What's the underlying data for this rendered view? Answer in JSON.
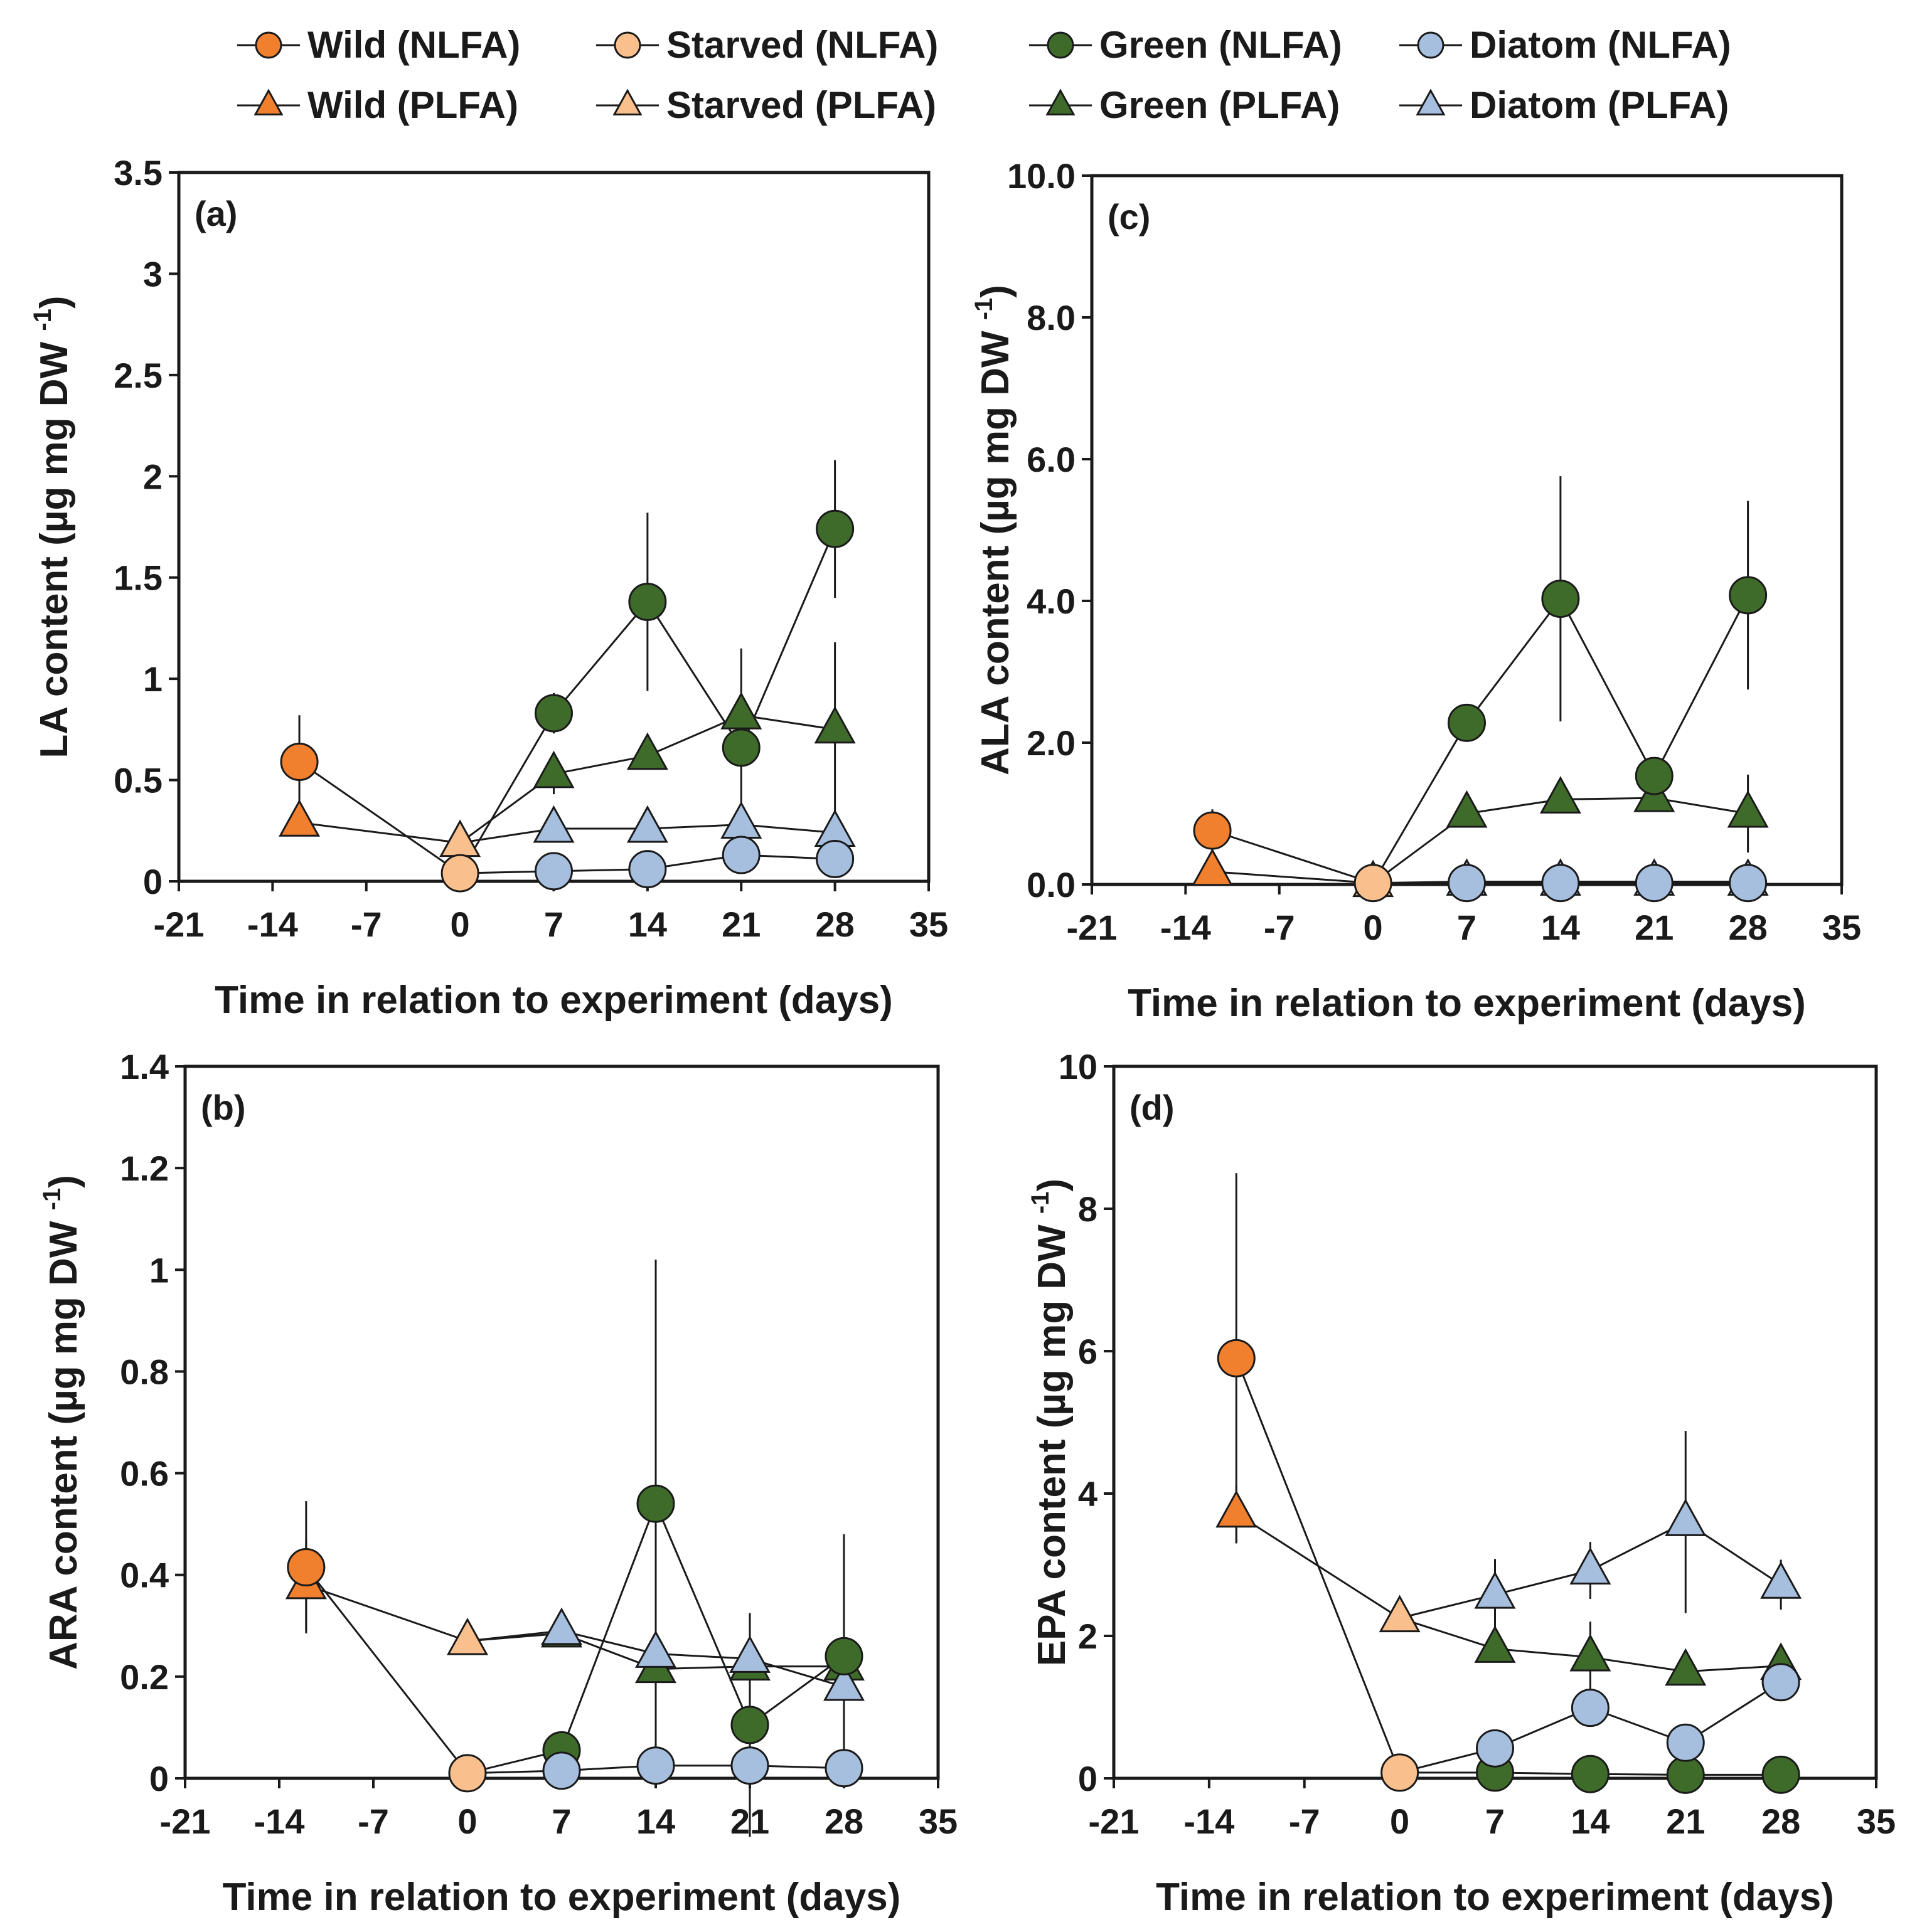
{
  "legend": [
    {
      "label": "Wild (NLFA)",
      "marker": "circle",
      "color": "#F07F2E"
    },
    {
      "label": "Starved (NLFA)",
      "marker": "circle",
      "color": "#F9C08E"
    },
    {
      "label": "Green (NLFA)",
      "marker": "circle",
      "color": "#3F6B2A"
    },
    {
      "label": "Diatom (NLFA)",
      "marker": "circle",
      "color": "#A7BFDF"
    },
    {
      "label": "Wild (PLFA)",
      "marker": "triangle",
      "color": "#F07F2E"
    },
    {
      "label": "Starved (PLFA)",
      "marker": "triangle",
      "color": "#F9C08E"
    },
    {
      "label": "Green (PLFA)",
      "marker": "triangle",
      "color": "#3F6B2A"
    },
    {
      "label": "Diatom (PLFA)",
      "marker": "triangle",
      "color": "#A7BFDF"
    }
  ],
  "colors": {
    "wild": "#F07F2E",
    "starved": "#F9C08E",
    "green": "#3F6B2A",
    "diatom": "#A7BFDF",
    "axis": "#1a1a1a"
  },
  "chart_data": [
    {
      "panel": "(a)",
      "type": "scatter",
      "xlabel": "Time in relation to experiment (days)",
      "ylabel": "LA content (µg mg DW",
      "ylabel_sup": "-1",
      "ylabel_close": ")",
      "xlim": [
        -21,
        35
      ],
      "ylim": [
        0,
        3.5
      ],
      "xticks": [
        "-21",
        "-14",
        "-7",
        "0",
        "7",
        "14",
        "21",
        "28",
        "35"
      ],
      "yticks": [
        "0",
        "0.5",
        "1",
        "1.5",
        "2",
        "2.5",
        "3",
        "3.5"
      ],
      "series": [
        {
          "name": "Wild (NLFA)",
          "marker": "circle",
          "color": "wild",
          "x": [
            -12
          ],
          "y": [
            0.59
          ],
          "err": [
            0.23
          ]
        },
        {
          "name": "Wild (PLFA)",
          "marker": "triangle",
          "color": "wild",
          "x": [
            -12
          ],
          "y": [
            0.29
          ],
          "err": [
            0
          ]
        },
        {
          "name": "Starved (NLFA)",
          "marker": "circle",
          "color": "starved",
          "x": [
            0
          ],
          "y": [
            0.04
          ],
          "err": [
            0
          ]
        },
        {
          "name": "Starved (PLFA)",
          "marker": "triangle",
          "color": "starved",
          "x": [
            0
          ],
          "y": [
            0.19
          ],
          "err": [
            0
          ]
        },
        {
          "name": "Green (NLFA)",
          "marker": "circle",
          "color": "green",
          "x": [
            7,
            14,
            21,
            28
          ],
          "y": [
            0.83,
            1.38,
            0.66,
            1.74
          ],
          "err": [
            0.1,
            0.44,
            0.49,
            0.34
          ]
        },
        {
          "name": "Green (PLFA)",
          "marker": "triangle",
          "color": "green",
          "x": [
            7,
            14,
            21,
            28
          ],
          "y": [
            0.53,
            0.62,
            0.82,
            0.75
          ],
          "err": [
            0.1,
            0,
            0,
            0.43
          ]
        },
        {
          "name": "Diatom (NLFA)",
          "marker": "circle",
          "color": "diatom",
          "x": [
            7,
            14,
            21,
            28
          ],
          "y": [
            0.05,
            0.06,
            0.13,
            0.11
          ],
          "err": [
            0,
            0,
            0,
            0
          ]
        },
        {
          "name": "Diatom (PLFA)",
          "marker": "triangle",
          "color": "diatom",
          "x": [
            7,
            14,
            21,
            28
          ],
          "y": [
            0.26,
            0.26,
            0.28,
            0.24
          ],
          "err": [
            0,
            0,
            0,
            0
          ]
        }
      ],
      "lines": [
        {
          "x": [
            -12,
            0,
            7,
            14,
            21,
            28
          ],
          "y": [
            0.59,
            0.04,
            0.83,
            1.38,
            0.66,
            1.74
          ]
        },
        {
          "x": [
            -12,
            0,
            7,
            14,
            21,
            28
          ],
          "y": [
            0.29,
            0.19,
            0.53,
            0.62,
            0.82,
            0.75
          ]
        },
        {
          "x": [
            0,
            7,
            14,
            21,
            28
          ],
          "y": [
            0.04,
            0.05,
            0.06,
            0.13,
            0.11
          ]
        },
        {
          "x": [
            0,
            7,
            14,
            21,
            28
          ],
          "y": [
            0.19,
            0.26,
            0.26,
            0.28,
            0.24
          ]
        }
      ]
    },
    {
      "panel": "(b)",
      "type": "scatter",
      "xlabel": "Time in relation to experiment (days)",
      "ylabel": "ARA content (µg mg DW",
      "ylabel_sup": "-1",
      "ylabel_close": ")",
      "xlim": [
        -21,
        35
      ],
      "ylim": [
        0,
        1.4
      ],
      "xticks": [
        "-21",
        "-14",
        "-7",
        "0",
        "7",
        "14",
        "21",
        "28",
        "35"
      ],
      "yticks": [
        "0",
        "0.2",
        "0.4",
        "0.6",
        "0.8",
        "1",
        "1.2",
        "1.4"
      ],
      "series": [
        {
          "name": "Wild (NLFA)",
          "marker": "circle",
          "color": "wild",
          "x": [
            -12
          ],
          "y": [
            0.415
          ],
          "err": [
            0.13
          ]
        },
        {
          "name": "Wild (PLFA)",
          "marker": "triangle",
          "color": "wild",
          "x": [
            -12
          ],
          "y": [
            0.38
          ],
          "err": [
            0.09
          ]
        },
        {
          "name": "Starved (NLFA)",
          "marker": "circle",
          "color": "starved",
          "x": [
            0
          ],
          "y": [
            0.01
          ],
          "err": [
            0
          ]
        },
        {
          "name": "Starved (PLFA)",
          "marker": "triangle",
          "color": "starved",
          "x": [
            0
          ],
          "y": [
            0.27
          ],
          "err": [
            0
          ]
        },
        {
          "name": "Green (NLFA)",
          "marker": "circle",
          "color": "green",
          "x": [
            7,
            14,
            21,
            28
          ],
          "y": [
            0.055,
            0.54,
            0.105,
            0.24
          ],
          "err": [
            0,
            0.48,
            0.22,
            0.24
          ]
        },
        {
          "name": "Green (PLFA)",
          "marker": "triangle",
          "color": "green",
          "x": [
            7,
            14,
            21,
            28
          ],
          "y": [
            0.285,
            0.215,
            0.22,
            0.22
          ],
          "err": [
            0,
            0,
            0,
            0
          ]
        },
        {
          "name": "Diatom (NLFA)",
          "marker": "circle",
          "color": "diatom",
          "x": [
            7,
            14,
            21,
            28
          ],
          "y": [
            0.015,
            0.025,
            0.025,
            0.02
          ],
          "err": [
            0,
            0,
            0,
            0
          ]
        },
        {
          "name": "Diatom (PLFA)",
          "marker": "triangle",
          "color": "diatom",
          "x": [
            7,
            14,
            21,
            28
          ],
          "y": [
            0.29,
            0.245,
            0.235,
            0.18
          ],
          "err": [
            0,
            0,
            0,
            0
          ]
        }
      ],
      "lines": [
        {
          "x": [
            -12,
            0,
            7,
            14,
            21,
            28
          ],
          "y": [
            0.415,
            0.01,
            0.055,
            0.54,
            0.105,
            0.24
          ]
        },
        {
          "x": [
            -12,
            0,
            7,
            14,
            21,
            28
          ],
          "y": [
            0.38,
            0.27,
            0.285,
            0.215,
            0.22,
            0.22
          ]
        },
        {
          "x": [
            0,
            7,
            14,
            21,
            28
          ],
          "y": [
            0.01,
            0.015,
            0.025,
            0.025,
            0.02
          ]
        },
        {
          "x": [
            0,
            7,
            14,
            21,
            28
          ],
          "y": [
            0.27,
            0.29,
            0.245,
            0.235,
            0.18
          ]
        }
      ]
    },
    {
      "panel": "(c)",
      "type": "scatter",
      "xlabel": "Time in relation to experiment (days)",
      "ylabel": "ALA content (µg mg DW",
      "ylabel_sup": "-1",
      "ylabel_close": ")",
      "xlim": [
        -21,
        35
      ],
      "ylim": [
        0,
        10
      ],
      "xticks": [
        "-21",
        "-14",
        "-7",
        "0",
        "7",
        "14",
        "21",
        "28",
        "35"
      ],
      "yticks": [
        "0.0",
        "2.0",
        "4.0",
        "6.0",
        "8.0",
        "10.0"
      ],
      "series": [
        {
          "name": "Wild (NLFA)",
          "marker": "circle",
          "color": "wild",
          "x": [
            -12
          ],
          "y": [
            0.76
          ],
          "err": [
            0.3
          ]
        },
        {
          "name": "Wild (PLFA)",
          "marker": "triangle",
          "color": "wild",
          "x": [
            -12
          ],
          "y": [
            0.18
          ],
          "err": [
            0
          ]
        },
        {
          "name": "Starved (NLFA)",
          "marker": "circle",
          "color": "starved",
          "x": [
            0
          ],
          "y": [
            0.02
          ],
          "err": [
            0
          ]
        },
        {
          "name": "Starved (PLFA)",
          "marker": "triangle",
          "color": "starved",
          "x": [
            0
          ],
          "y": [
            0.02
          ],
          "err": [
            0
          ]
        },
        {
          "name": "Green (NLFA)",
          "marker": "circle",
          "color": "green",
          "x": [
            7,
            14,
            21,
            28
          ],
          "y": [
            2.28,
            4.03,
            1.53,
            4.08
          ],
          "err": [
            0,
            1.73,
            0,
            1.33
          ]
        },
        {
          "name": "Green (PLFA)",
          "marker": "triangle",
          "color": "green",
          "x": [
            7,
            14,
            21,
            28
          ],
          "y": [
            1.0,
            1.2,
            1.22,
            1.0
          ],
          "err": [
            0,
            0,
            0,
            0.55
          ]
        },
        {
          "name": "Diatom (NLFA)",
          "marker": "circle",
          "color": "diatom",
          "x": [
            7,
            14,
            21,
            28
          ],
          "y": [
            0.02,
            0.02,
            0.02,
            0.02
          ],
          "err": [
            0,
            0,
            0,
            0
          ]
        },
        {
          "name": "Diatom (PLFA)",
          "marker": "triangle",
          "color": "diatom",
          "x": [
            7,
            14,
            21,
            28
          ],
          "y": [
            0.04,
            0.04,
            0.04,
            0.04
          ],
          "err": [
            0,
            0,
            0,
            0
          ]
        }
      ],
      "lines": [
        {
          "x": [
            -12,
            0,
            7,
            14,
            21,
            28
          ],
          "y": [
            0.76,
            0.02,
            2.28,
            4.03,
            1.53,
            4.08
          ]
        },
        {
          "x": [
            -12,
            0,
            7,
            14,
            21,
            28
          ],
          "y": [
            0.18,
            0.02,
            1.0,
            1.2,
            1.22,
            1.0
          ]
        },
        {
          "x": [
            0,
            7,
            14,
            21,
            28
          ],
          "y": [
            0.02,
            0.02,
            0.02,
            0.02,
            0.02
          ]
        },
        {
          "x": [
            0,
            7,
            14,
            21,
            28
          ],
          "y": [
            0.02,
            0.04,
            0.04,
            0.04,
            0.04
          ]
        }
      ]
    },
    {
      "panel": "(d)",
      "type": "scatter",
      "xlabel": "Time in relation to experiment (days)",
      "ylabel": "EPA content (µg mg DW",
      "ylabel_sup": "-1",
      "ylabel_close": ")",
      "xlim": [
        -21,
        35
      ],
      "ylim": [
        0,
        10
      ],
      "xticks": [
        "-21",
        "-14",
        "-7",
        "0",
        "7",
        "14",
        "21",
        "28",
        "35"
      ],
      "yticks": [
        "0",
        "2",
        "4",
        "6",
        "8",
        "10"
      ],
      "series": [
        {
          "name": "Wild (NLFA)",
          "marker": "circle",
          "color": "wild",
          "x": [
            -12
          ],
          "y": [
            5.9
          ],
          "err": [
            2.6
          ]
        },
        {
          "name": "Wild (PLFA)",
          "marker": "triangle",
          "color": "wild",
          "x": [
            -12
          ],
          "y": [
            3.72
          ],
          "err": [
            0.4
          ]
        },
        {
          "name": "Starved (NLFA)",
          "marker": "circle",
          "color": "starved",
          "x": [
            0
          ],
          "y": [
            0.08
          ],
          "err": [
            0
          ]
        },
        {
          "name": "Starved (PLFA)",
          "marker": "triangle",
          "color": "starved",
          "x": [
            0
          ],
          "y": [
            2.25
          ],
          "err": [
            0
          ]
        },
        {
          "name": "Green (NLFA)",
          "marker": "circle",
          "color": "green",
          "x": [
            7,
            14,
            21,
            28
          ],
          "y": [
            0.08,
            0.06,
            0.05,
            0.05
          ],
          "err": [
            0,
            0,
            0,
            0
          ]
        },
        {
          "name": "Green (PLFA)",
          "marker": "triangle",
          "color": "green",
          "x": [
            7,
            14,
            21,
            28
          ],
          "y": [
            1.82,
            1.7,
            1.5,
            1.58
          ],
          "err": [
            0,
            0.5,
            0,
            0
          ]
        },
        {
          "name": "Diatom (NLFA)",
          "marker": "circle",
          "color": "diatom",
          "x": [
            7,
            14,
            21,
            28
          ],
          "y": [
            0.42,
            0.99,
            0.5,
            1.35
          ],
          "err": [
            0,
            0,
            0,
            0
          ]
        },
        {
          "name": "Diatom (PLFA)",
          "marker": "triangle",
          "color": "diatom",
          "x": [
            7,
            14,
            21,
            28
          ],
          "y": [
            2.58,
            2.92,
            3.6,
            2.72
          ],
          "err": [
            0.5,
            0.4,
            1.28,
            0.35
          ]
        }
      ],
      "lines": [
        {
          "x": [
            -12,
            0,
            7,
            14,
            21,
            28
          ],
          "y": [
            5.9,
            0.08,
            0.08,
            0.06,
            0.05,
            0.05
          ]
        },
        {
          "x": [
            -12,
            0,
            7,
            14,
            21,
            28
          ],
          "y": [
            3.72,
            2.25,
            1.82,
            1.7,
            1.5,
            1.58
          ]
        },
        {
          "x": [
            0,
            7,
            14,
            21,
            28
          ],
          "y": [
            0.08,
            0.42,
            0.99,
            0.5,
            1.35
          ]
        },
        {
          "x": [
            0,
            7,
            14,
            21,
            28
          ],
          "y": [
            2.25,
            2.58,
            2.92,
            3.6,
            2.72
          ]
        }
      ]
    }
  ]
}
